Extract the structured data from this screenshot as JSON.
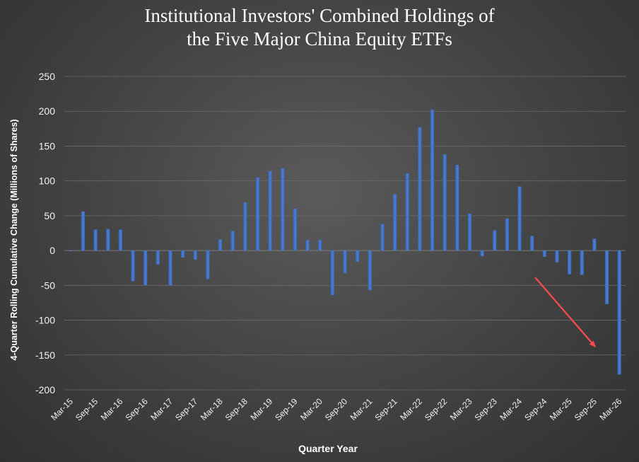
{
  "chart_data": {
    "type": "bar",
    "title_line1": "Institutional Investors' Combined Holdings of",
    "title_line2": "the Five Major China Equity ETFs",
    "xlabel": "Quarter Year",
    "ylabel": "4-Quarter Rolling Cumulative Change (Millions of Shares)",
    "ylim": [
      -200,
      250
    ],
    "y_ticks": [
      250,
      200,
      150,
      100,
      50,
      0,
      -50,
      -100,
      -150,
      -200
    ],
    "grid": true,
    "legend": "none",
    "bar_color": "#4472c4",
    "annotation_color": "#ff4b4b",
    "annotation": "red-arrow-pointing-down-right",
    "categories": [
      "Mar-15",
      "Jun-15",
      "Sep-15",
      "Dec-15",
      "Mar-16",
      "Jun-16",
      "Sep-16",
      "Dec-16",
      "Mar-17",
      "Jun-17",
      "Sep-17",
      "Dec-17",
      "Mar-18",
      "Jun-18",
      "Sep-18",
      "Dec-18",
      "Mar-19",
      "Jun-19",
      "Sep-19",
      "Dec-19",
      "Mar-20",
      "Jun-20",
      "Sep-20",
      "Dec-20",
      "Mar-21",
      "Jun-21",
      "Sep-21",
      "Dec-21",
      "Mar-22",
      "Jun-22",
      "Sep-22",
      "Dec-22",
      "Mar-23",
      "Jun-23",
      "Sep-23",
      "Dec-23",
      "Mar-24",
      "Jun-24",
      "Sep-24",
      "Dec-24",
      "Mar-25",
      "Jun-25",
      "Sep-25",
      "Dec-25",
      "Mar-26"
    ],
    "x_tick_labels": [
      "Mar-15",
      "Sep-15",
      "Mar-16",
      "Sep-16",
      "Mar-17",
      "Sep-17",
      "Mar-18",
      "Sep-18",
      "Mar-19",
      "Sep-19",
      "Mar-20",
      "Sep-20",
      "Mar-21",
      "Sep-21",
      "Mar-22",
      "Sep-22",
      "Mar-23",
      "Sep-23",
      "Mar-24",
      "Sep-24",
      "Mar-25",
      "Sep-25",
      "Mar-26"
    ],
    "values": [
      -1,
      56,
      30,
      31,
      30,
      -44,
      -50,
      -20,
      -50,
      -10,
      -13,
      -41,
      16,
      28,
      69,
      105,
      114,
      118,
      60,
      15,
      15,
      -64,
      -32,
      -16,
      -57,
      38,
      81,
      111,
      177,
      202,
      138,
      123,
      53,
      -8,
      29,
      46,
      92,
      21,
      -9,
      -17,
      -34,
      -35,
      17,
      -77,
      -178
    ]
  }
}
